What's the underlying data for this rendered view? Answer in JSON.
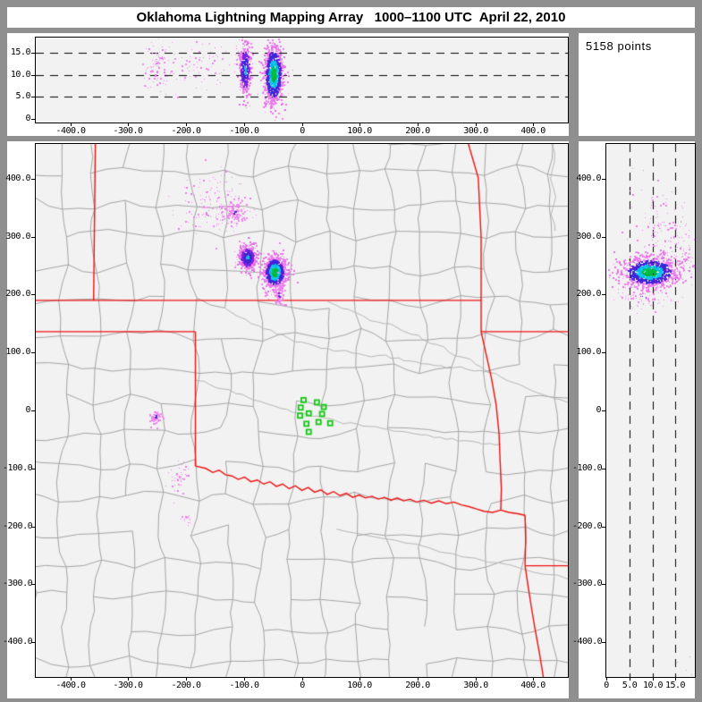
{
  "window": {
    "title": "Oklahoma Lightning Mapping Array   1000–1100 UTC  April 22, 2010",
    "points_label": "5158 points"
  },
  "colors": {
    "page_bg": "#8f8f8f",
    "card_bg": "#ffffff",
    "plot_bg": "#f2f2f2",
    "axis": "#000000",
    "county": "#a5a5a5",
    "river": "#b7b7b7",
    "state_border": "#ee1111",
    "station": "#14c814"
  },
  "palettes": {
    "full": [
      [
        0.5,
        [
          "#00b435",
          "#00c253"
        ]
      ],
      [
        0.92,
        [
          "#00b9e1",
          "#16cdeb"
        ]
      ],
      [
        1.5,
        [
          "#2d2ddc",
          "#4523cd",
          "#6019e1"
        ]
      ],
      [
        9,
        [
          "#ee82ee",
          "#f078f0",
          "#e66ee6"
        ]
      ]
    ],
    "blue": [
      [
        0.32,
        [
          "#16bbdd"
        ]
      ],
      [
        0.85,
        [
          "#2d2ddc",
          "#4523cd"
        ]
      ],
      [
        1.35,
        [
          "#6923dd",
          "#8c1ee1"
        ]
      ],
      [
        9,
        [
          "#ee82ee",
          "#e66ee6"
        ]
      ]
    ],
    "pink": [
      [
        9,
        [
          "#ee82ee",
          "#f08cf0",
          "#e87ae8"
        ]
      ]
    ],
    "pinkp": [
      [
        0.3,
        [
          "#5522cc"
        ]
      ],
      [
        9,
        [
          "#ee82ee",
          "#f08cf0"
        ]
      ]
    ]
  },
  "axes": {
    "x_ticks": [
      -400,
      -300,
      -200,
      -100,
      0,
      100,
      200,
      300,
      400
    ],
    "x_labels": [
      "-400.0",
      "-300.0",
      "-200.0",
      "-100.0",
      "0",
      "100.0",
      "200.0",
      "300.0",
      "400.0"
    ],
    "y_ticks": [
      400,
      300,
      200,
      100,
      0,
      -100,
      -200,
      -300,
      -400
    ],
    "y_labels": [
      "400.0",
      "300.0",
      "200.0",
      "100.0",
      "0",
      "-100.0",
      "-200.0",
      "-300.0",
      "-400.0"
    ],
    "alt_ticks": [
      0,
      5,
      10,
      15
    ],
    "alt_labels": [
      "0",
      "5.0",
      "10.0",
      "15.0"
    ],
    "alt_dashed": [
      5,
      10,
      15
    ]
  },
  "chart_data": {
    "type": "scatter",
    "panels": {
      "top_altitude_vs_ew": {
        "x_range_km": [
          -460,
          460
        ],
        "alt_range_km": [
          0,
          18.6
        ],
        "grid": "dashed alt lines at 5,10,15",
        "legend": "none"
      },
      "plan_view": {
        "x_range_km": [
          -460,
          460
        ],
        "y_range_km": [
          -460,
          460
        ],
        "basemap": "Oklahoma region counties + state borders + rivers"
      },
      "altitude_vs_ns": {
        "alt_range_km": [
          0,
          19.2
        ],
        "y_range_km": [
          -460,
          460
        ],
        "grid": "dashed alt lines at 5,10,15"
      }
    },
    "total_points": 5158,
    "clusters": {
      "plan": [
        {
          "x": -95,
          "y": 265,
          "sx": 8,
          "sy": 11,
          "n": 420,
          "palette": "blue",
          "size": 2
        },
        {
          "x": -48,
          "y": 240,
          "sx": 10,
          "sy": 14,
          "n": 950,
          "palette": "full",
          "size": 2
        },
        {
          "x": -40,
          "y": 201,
          "sx": 5,
          "sy": 11,
          "n": 90,
          "palette": "pinkp",
          "size": 2
        },
        {
          "x": -117,
          "y": 343,
          "sx": 9,
          "sy": 11,
          "n": 100,
          "palette": "pinkp",
          "size": 2
        },
        {
          "x": -150,
          "y": 355,
          "sx": 32,
          "sy": 26,
          "n": 170,
          "palette": "pink",
          "size": 1
        },
        {
          "x": -254,
          "y": -10,
          "sx": 5,
          "sy": 7,
          "n": 55,
          "palette": "pinkp",
          "size": 2
        },
        {
          "x": -212,
          "y": -112,
          "sx": 9,
          "sy": 14,
          "n": 48,
          "palette": "pink",
          "size": 1
        },
        {
          "x": -200,
          "y": -186,
          "sx": 6,
          "sy": 5,
          "n": 14,
          "palette": "pink",
          "size": 1
        }
      ],
      "top": [
        {
          "x": -50,
          "y": 10.3,
          "sx": 8.5,
          "sy": 3.4,
          "n": 1050,
          "palette": "full",
          "size": 2
        },
        {
          "x": -99,
          "y": 11.2,
          "sx": 5.5,
          "sy": 3.0,
          "n": 330,
          "palette": "blue",
          "size": 2
        },
        {
          "x": -253,
          "y": 12.3,
          "sx": 13,
          "sy": 2.8,
          "n": 80,
          "palette": "pink",
          "size": 1
        },
        {
          "x": -180,
          "y": 12.5,
          "sx": 38,
          "sy": 2.9,
          "n": 95,
          "palette": "pink",
          "size": 1
        }
      ],
      "ns": [
        {
          "x": 9.3,
          "y": 240,
          "sx": 3.1,
          "sy": 13,
          "n": 1050,
          "palette": "full",
          "size": 2
        },
        {
          "x": 12,
          "y": 318,
          "sx": 3.4,
          "sy": 38,
          "n": 130,
          "palette": "pink",
          "size": 1
        },
        {
          "x": 8,
          "y": 196,
          "sx": 3,
          "sy": 11,
          "n": 80,
          "palette": "pinkp",
          "size": 1
        },
        {
          "x": 16.6,
          "y": 255,
          "sx": 1.8,
          "sy": 20,
          "n": 90,
          "palette": "pink",
          "size": 1
        },
        {
          "x": 17.5,
          "y": -450,
          "sx": 1.5,
          "sy": 12,
          "n": 10,
          "palette": "pink",
          "size": 1
        }
      ]
    },
    "stations_km": [
      [
        3,
        18
      ],
      [
        -2,
        5
      ],
      [
        26,
        14
      ],
      [
        38,
        6
      ],
      [
        -3,
        -9
      ],
      [
        12,
        -5
      ],
      [
        35,
        -6
      ],
      [
        8,
        -23
      ],
      [
        29,
        -20
      ],
      [
        49,
        -22
      ],
      [
        12,
        -37
      ]
    ],
    "state_borders_km": [
      [
        [
          -460,
          190
        ],
        [
          310,
          190
        ]
      ],
      [
        [
          -460,
          136
        ],
        [
          -184,
          136
        ]
      ],
      [
        [
          -184,
          136
        ],
        [
          -184,
          -96
        ]
      ],
      [
        [
          -357,
          460
        ],
        [
          -360,
          190
        ]
      ],
      [
        [
          288,
          460
        ],
        [
          305,
          402
        ],
        [
          310,
          300
        ],
        [
          310,
          136
        ]
      ],
      [
        [
          310,
          136
        ],
        [
          460,
          136
        ]
      ],
      [
        [
          310,
          136
        ],
        [
          318,
          100
        ],
        [
          328,
          55
        ],
        [
          336,
          10
        ],
        [
          341,
          -40
        ],
        [
          343,
          -90
        ],
        [
          345,
          -135
        ],
        [
          344,
          -172
        ]
      ],
      [
        [
          -184,
          -96
        ],
        [
          -166,
          -100
        ],
        [
          -154,
          -107
        ],
        [
          -143,
          -103
        ],
        [
          -132,
          -111
        ],
        [
          -121,
          -113
        ],
        [
          -110,
          -119
        ],
        [
          -99,
          -115
        ],
        [
          -88,
          -123
        ],
        [
          -77,
          -120
        ],
        [
          -66,
          -127
        ],
        [
          -55,
          -123
        ],
        [
          -44,
          -131
        ],
        [
          -33,
          -127
        ],
        [
          -22,
          -135
        ],
        [
          -11,
          -130
        ],
        [
          0,
          -138
        ],
        [
          11,
          -133
        ],
        [
          22,
          -141
        ],
        [
          33,
          -137
        ],
        [
          44,
          -145
        ],
        [
          55,
          -140
        ],
        [
          66,
          -147
        ],
        [
          77,
          -143
        ],
        [
          88,
          -150
        ],
        [
          99,
          -146
        ],
        [
          110,
          -151
        ],
        [
          121,
          -148
        ],
        [
          132,
          -153
        ],
        [
          143,
          -150
        ],
        [
          154,
          -155
        ],
        [
          165,
          -151
        ],
        [
          176,
          -156
        ],
        [
          187,
          -153
        ],
        [
          198,
          -158
        ],
        [
          211,
          -155
        ],
        [
          224,
          -160
        ],
        [
          237,
          -156
        ],
        [
          250,
          -161
        ],
        [
          263,
          -158
        ],
        [
          276,
          -163
        ],
        [
          289,
          -166
        ],
        [
          302,
          -170
        ],
        [
          315,
          -174
        ],
        [
          330,
          -176
        ],
        [
          344,
          -172
        ]
      ],
      [
        [
          344,
          -172
        ],
        [
          358,
          -176
        ],
        [
          372,
          -178
        ],
        [
          386,
          -181
        ]
      ],
      [
        [
          386,
          -181
        ],
        [
          387,
          -225
        ],
        [
          386,
          -268
        ]
      ],
      [
        [
          386,
          -268
        ],
        [
          460,
          -268
        ]
      ],
      [
        [
          386,
          -268
        ],
        [
          391,
          -302
        ],
        [
          397,
          -340
        ],
        [
          403,
          -376
        ],
        [
          410,
          -414
        ],
        [
          416,
          -450
        ],
        [
          419,
          -470
        ]
      ]
    ],
    "rivers_km": [
      [
        [
          45,
          188
        ],
        [
          70,
          176
        ],
        [
          95,
          168
        ],
        [
          118,
          155
        ],
        [
          142,
          150
        ],
        [
          165,
          143
        ],
        [
          188,
          132
        ],
        [
          210,
          122
        ],
        [
          232,
          114
        ],
        [
          255,
          100
        ],
        [
          278,
          92
        ],
        [
          300,
          80
        ],
        [
          322,
          66
        ],
        [
          344,
          58
        ],
        [
          366,
          48
        ],
        [
          390,
          38
        ],
        [
          415,
          28
        ],
        [
          440,
          20
        ],
        [
          460,
          14
        ]
      ],
      [
        [
          -184,
          52
        ],
        [
          -158,
          44
        ],
        [
          -136,
          37
        ],
        [
          -114,
          29
        ],
        [
          -92,
          22
        ],
        [
          -70,
          15
        ],
        [
          -48,
          8
        ],
        [
          -26,
          2
        ],
        [
          -4,
          -4
        ],
        [
          18,
          -10
        ],
        [
          40,
          -13
        ],
        [
          62,
          -19
        ],
        [
          84,
          -21
        ],
        [
          106,
          -27
        ],
        [
          128,
          -28
        ],
        [
          150,
          -33
        ],
        [
          172,
          -36
        ],
        [
          194,
          -40
        ],
        [
          216,
          -42
        ],
        [
          238,
          -46
        ],
        [
          260,
          -48
        ],
        [
          282,
          -52
        ],
        [
          304,
          -55
        ],
        [
          326,
          -57
        ],
        [
          344,
          -58
        ]
      ],
      [
        [
          -132,
          176
        ],
        [
          -110,
          162
        ],
        [
          -88,
          150
        ],
        [
          -66,
          141
        ],
        [
          -44,
          132
        ],
        [
          -22,
          124
        ],
        [
          0,
          118
        ],
        [
          22,
          112
        ],
        [
          44,
          107
        ],
        [
          66,
          103
        ],
        [
          88,
          99
        ],
        [
          110,
          95
        ],
        [
          132,
          95
        ],
        [
          154,
          90
        ],
        [
          176,
          86
        ],
        [
          198,
          84
        ],
        [
          220,
          80
        ],
        [
          242,
          77
        ],
        [
          264,
          74
        ],
        [
          286,
          71
        ],
        [
          308,
          69
        ],
        [
          330,
          64
        ]
      ],
      [
        [
          60,
          -205
        ],
        [
          100,
          -213
        ],
        [
          140,
          -221
        ],
        [
          180,
          -229
        ],
        [
          220,
          -237
        ],
        [
          260,
          -247
        ],
        [
          300,
          -255
        ],
        [
          340,
          -263
        ],
        [
          380,
          -273
        ],
        [
          420,
          -283
        ],
        [
          460,
          -291
        ]
      ],
      [
        [
          432,
          460
        ],
        [
          437,
          430
        ],
        [
          430,
          400
        ],
        [
          439,
          368
        ],
        [
          431,
          338
        ],
        [
          438,
          310
        ]
      ]
    ]
  }
}
